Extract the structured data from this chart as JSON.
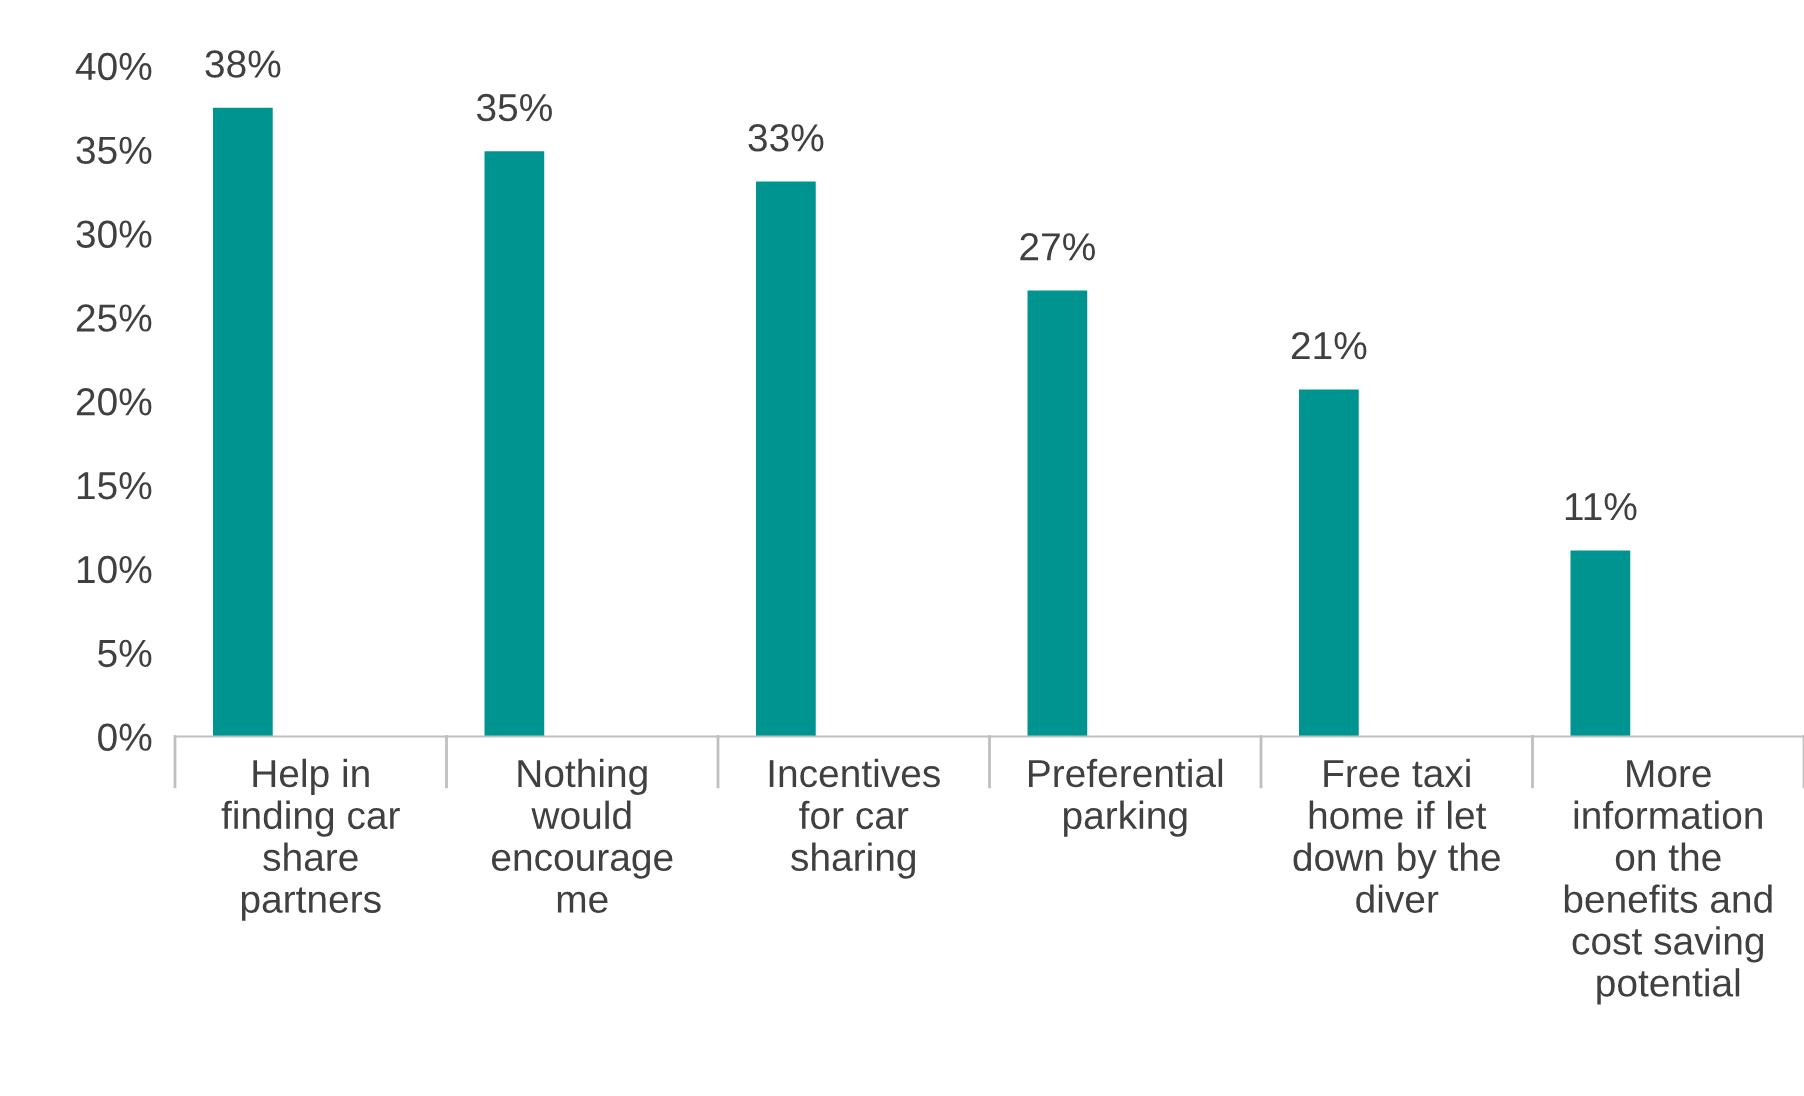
{
  "chart_data": {
    "type": "bar",
    "categories": [
      "Help in\nfinding car\nshare\npartners",
      "Nothing\nwould\nencourage\nme",
      "Incentives\nfor car\nsharing",
      "Preferential\nparking",
      "Free taxi\nhome if let\ndown by the\ndiver",
      "More\ninformation\non the\nbenefits and\ncost saving\npotential"
    ],
    "values": [
      0.375,
      0.349,
      0.331,
      0.266,
      0.207,
      0.111
    ],
    "value_labels": [
      "38%",
      "35%",
      "33%",
      "27%",
      "21%",
      "11%"
    ],
    "color": "#009490",
    "ylim": [
      0,
      0.4
    ],
    "yticks": [
      {
        "value": 0,
        "label": "0%"
      },
      {
        "value": 0.05,
        "label": "5%"
      },
      {
        "value": 0.1,
        "label": "10%"
      },
      {
        "value": 0.15,
        "label": "15%"
      },
      {
        "value": 0.2,
        "label": "20%"
      },
      {
        "value": 0.25,
        "label": "25%"
      },
      {
        "value": 0.3,
        "label": "30%"
      },
      {
        "value": 0.35,
        "label": "35%"
      },
      {
        "value": 0.4,
        "label": "40%"
      }
    ],
    "grid": false,
    "legend": false
  }
}
